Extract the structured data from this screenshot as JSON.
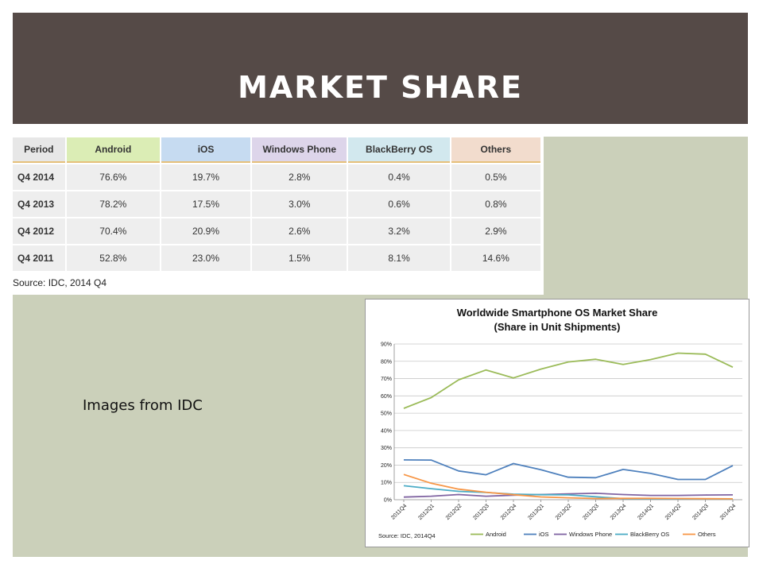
{
  "slide": {
    "title": "MARKET SHARE",
    "note": "Images from IDC"
  },
  "table": {
    "headers": [
      "Period",
      "Android",
      "iOS",
      "Windows Phone",
      "BlackBerry OS",
      "Others"
    ],
    "rows": [
      [
        "Q4 2014",
        "76.6%",
        "19.7%",
        "2.8%",
        "0.4%",
        "0.5%"
      ],
      [
        "Q4 2013",
        "78.2%",
        "17.5%",
        "3.0%",
        "0.6%",
        "0.8%"
      ],
      [
        "Q4 2012",
        "70.4%",
        "20.9%",
        "2.6%",
        "3.2%",
        "2.9%"
      ],
      [
        "Q4 2011",
        "52.8%",
        "23.0%",
        "1.5%",
        "8.1%",
        "14.6%"
      ]
    ],
    "source": "Source: IDC, 2014 Q4"
  },
  "chart_data": {
    "type": "line",
    "title": "Worldwide Smartphone OS Market Share",
    "subtitle": "(Share in Unit Shipments)",
    "source": "Source: IDC, 2014Q4",
    "x": [
      "2011Q4",
      "2012Q1",
      "2012Q2",
      "2012Q3",
      "2012Q4",
      "2013Q1",
      "2013Q2",
      "2013Q3",
      "2013Q4",
      "2014Q1",
      "2014Q2",
      "2014Q3",
      "2014Q4"
    ],
    "yticks": [
      "0%",
      "10%",
      "20%",
      "30%",
      "40%",
      "50%",
      "60%",
      "70%",
      "80%",
      "90%"
    ],
    "ylim": [
      0,
      90
    ],
    "grid": true,
    "legend_position": "bottom",
    "series": [
      {
        "name": "Android",
        "color": "#9bbb59",
        "values": [
          52.8,
          59,
          69.3,
          75,
          70.4,
          75.5,
          79.6,
          81.2,
          78.2,
          81,
          84.7,
          84.1,
          76.6
        ]
      },
      {
        "name": "iOS",
        "color": "#4f81bd",
        "values": [
          23.0,
          22.9,
          16.6,
          14.4,
          20.9,
          17.3,
          13.0,
          12.7,
          17.5,
          15.2,
          11.7,
          11.7,
          19.7
        ]
      },
      {
        "name": "Windows Phone",
        "color": "#8064a2",
        "values": [
          1.5,
          2.0,
          3.0,
          2.0,
          2.6,
          3.0,
          3.4,
          3.7,
          3.0,
          2.5,
          2.5,
          2.7,
          2.8
        ]
      },
      {
        "name": "BlackBerry OS",
        "color": "#4bacc6",
        "values": [
          8.1,
          6.4,
          4.8,
          4.2,
          3.2,
          2.9,
          2.8,
          1.7,
          0.6,
          0.5,
          0.5,
          0.5,
          0.4
        ]
      },
      {
        "name": "Others",
        "color": "#f79646",
        "values": [
          14.6,
          9.5,
          6.1,
          4.3,
          2.9,
          1.6,
          1.1,
          0.7,
          0.8,
          0.8,
          0.7,
          0.6,
          0.5
        ]
      }
    ]
  }
}
